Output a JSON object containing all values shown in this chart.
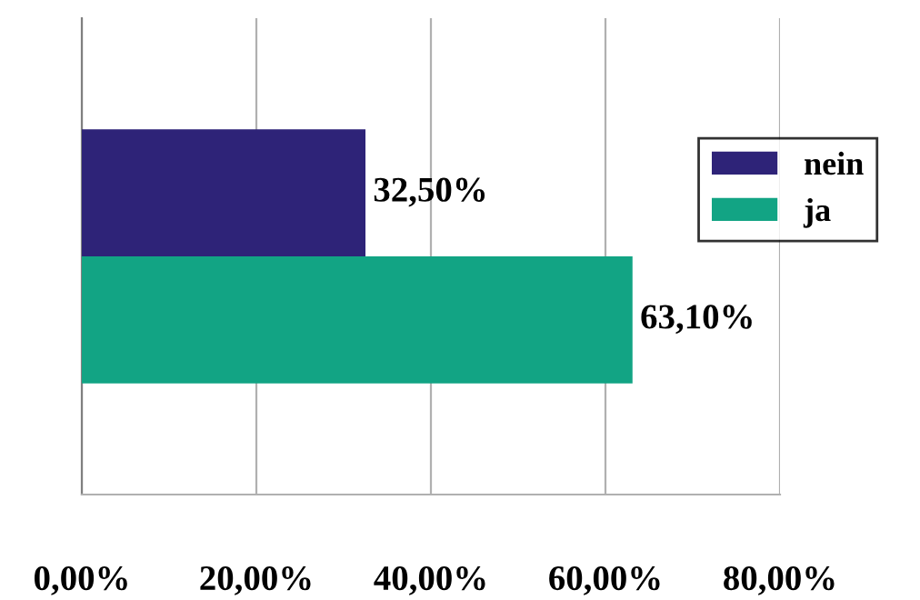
{
  "chart_data": {
    "type": "bar",
    "orientation": "horizontal",
    "categories": [
      null
    ],
    "series": [
      {
        "name": "nein",
        "color": "#2e2378",
        "values": [
          32.5
        ],
        "value_labels": [
          "32,50%"
        ]
      },
      {
        "name": "ja",
        "color": "#12a484",
        "values": [
          63.1
        ],
        "value_labels": [
          "63,10%"
        ]
      }
    ],
    "xlim": [
      0,
      80
    ],
    "xticks": [
      {
        "value": 0,
        "label": "0,00%"
      },
      {
        "value": 20,
        "label": "20,00%"
      },
      {
        "value": 40,
        "label": "40,00%"
      },
      {
        "value": 60,
        "label": "60,00%"
      },
      {
        "value": 80,
        "label": "80,00%"
      }
    ],
    "grid": "x",
    "legend": "right"
  }
}
